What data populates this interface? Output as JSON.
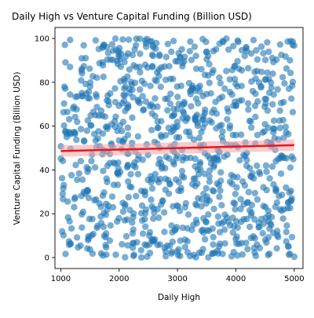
{
  "chart_data": {
    "type": "scatter",
    "title": "Daily High vs Venture Capital Funding (Billion USD)",
    "xlabel": "Daily High",
    "ylabel": "Venture Capital Funding (Billion USD)",
    "xlim": [
      900,
      5150
    ],
    "ylim": [
      -5,
      105
    ],
    "xticks": [
      1000,
      2000,
      3000,
      4000,
      5000
    ],
    "yticks": [
      0,
      20,
      40,
      60,
      80,
      100
    ],
    "grid": false,
    "legend": "none",
    "point_color": "#1f77b4",
    "point_alpha": 0.6,
    "trend_line": {
      "x": [
        1000,
        5000
      ],
      "y": [
        48.6,
        51.3
      ],
      "color": "#e31a1c",
      "ci_color": "#f4a0a4",
      "ci_halfwidth": [
        2.6,
        2.6
      ]
    },
    "n_points": 1000,
    "points_generation": {
      "seed": 12345,
      "x_range": [
        1000,
        5000
      ],
      "y_range": [
        0,
        100
      ],
      "note": "uniform scatter"
    }
  }
}
